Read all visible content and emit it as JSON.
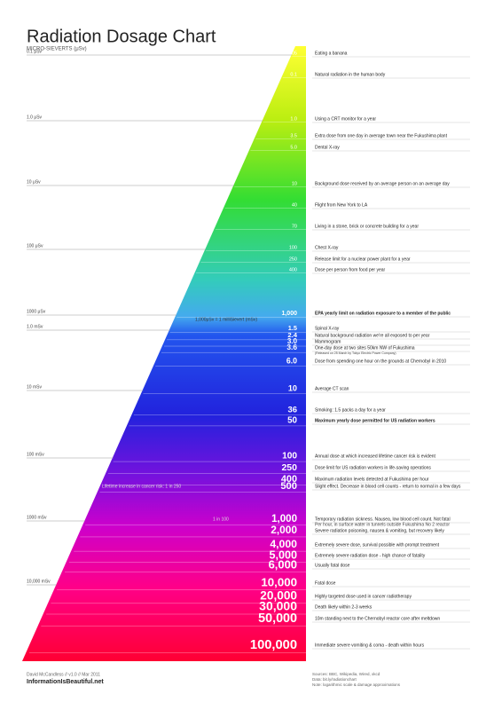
{
  "header": {
    "title": "Radiation Dosage Chart",
    "unit_label": "MICRO-SIEVERTS (μSv)"
  },
  "scale": [
    "0.1 μSv",
    "1.0 μSv",
    "10 μSv",
    "100 μSv",
    "1000 μSv",
    "1.0 mSv",
    "10 mSv",
    "100 mSv",
    "1000 mSv",
    "10,000 mSv"
  ],
  "entries": [
    {
      "value": "0.05",
      "description": "Eating a banana"
    },
    {
      "value": "0.1",
      "description": "Natural radiation in the human body"
    },
    {
      "value": "1.0",
      "description": "Using a CRT monitor for a year"
    },
    {
      "value": "3.5",
      "description": "Extra dose from one day in average town near the Fukushima plant"
    },
    {
      "value": "5.0",
      "description": "Dental X-ray"
    },
    {
      "value": "10",
      "description": "Background dose received by an average person on an average day"
    },
    {
      "value": "40",
      "description": "Flight from New York to LA"
    },
    {
      "value": "70",
      "description": "Living in a stone, brick or concrete building for a year"
    },
    {
      "value": "100",
      "description": "Chest X-ray"
    },
    {
      "value": "250",
      "description": "Release limit for a nuclear power plant for a year"
    },
    {
      "value": "400",
      "description": "Dose per person from food per year"
    },
    {
      "value": "1,000",
      "description": "EPA yearly limit on radiation exposure to a member of the public"
    },
    {
      "value": "1.5",
      "description": "Spinal X-ray"
    },
    {
      "value": "2.4",
      "description": "Natural background radiation we're all exposed to per year"
    },
    {
      "value": "3.0",
      "description": "Mammogram"
    },
    {
      "value": "3.6",
      "description": "One-day dose at two sites 50km NW of Fukushima",
      "detail": "(Released on 25 March by Tokyo Electric Power Company)"
    },
    {
      "value": "6.0",
      "description": "Dose from spending one hour on the grounds at Chernobyl in 2010"
    },
    {
      "value": "10",
      "description": "Average CT scan"
    },
    {
      "value": "36",
      "description": "Smoking: 1.5 packs a day for a year"
    },
    {
      "value": "50",
      "description": "Maximum yearly dose permitted for US radiation workers"
    },
    {
      "value": "100",
      "description": "Annual dose at which increased lifetime cancer risk is evident"
    },
    {
      "value": "250",
      "description": "Dose limit for US radiation workers in life-saving operations"
    },
    {
      "value": "400",
      "description": "Maximum radiation levels detected at Fukushima per hour"
    },
    {
      "value": "500",
      "description": "Slight effect. Decrease in blood cell counts - return to normal in a few days"
    },
    {
      "value": "1,000",
      "description": "Temporary radiation sickness. Nausea, low blood cell count. Not fatal",
      "detail": "Per hour, in surface water in tunnels outside Fukushima No 2 reactor"
    },
    {
      "value": "2,000",
      "description": "Severe radiation poisoning, nausea & vomiting, but recovery likely"
    },
    {
      "value": "4,000",
      "description": "Extremely severe dose, survival possible with prompt treatment"
    },
    {
      "value": "5,000",
      "description": "Extremely severe radiation dose - high chance of fatality"
    },
    {
      "value": "6,000",
      "description": "Usually fatal dose"
    },
    {
      "value": "10,000",
      "description": "Fatal dose"
    },
    {
      "value": "20,000",
      "description": "Highly targeted dose used in cancer radiotherapy"
    },
    {
      "value": "30,000",
      "description": "Death likely within 2-3 weeks"
    },
    {
      "value": "50,000",
      "description": "10m standing next to the Chernobyl reactor core after meltdown"
    },
    {
      "value": "100,000",
      "description": "Immediate severe vomiting & coma - death within hours"
    }
  ],
  "notes": [
    "1,000μSv = 1 milliSievert (mSv)",
    "Lifetime increase in cancer risk: 1 in 250",
    "1 in 100"
  ],
  "footer": {
    "credit": "David McCandless // v1.0 // Mar 2011",
    "site": "InformationIsBeautiful.net",
    "sources": [
      "Sources: BBC, Wikipedia, Wired, xkcd",
      "Data: bit.ly/radiationchart",
      "Note: logarithmic scale & damage approximations"
    ]
  }
}
